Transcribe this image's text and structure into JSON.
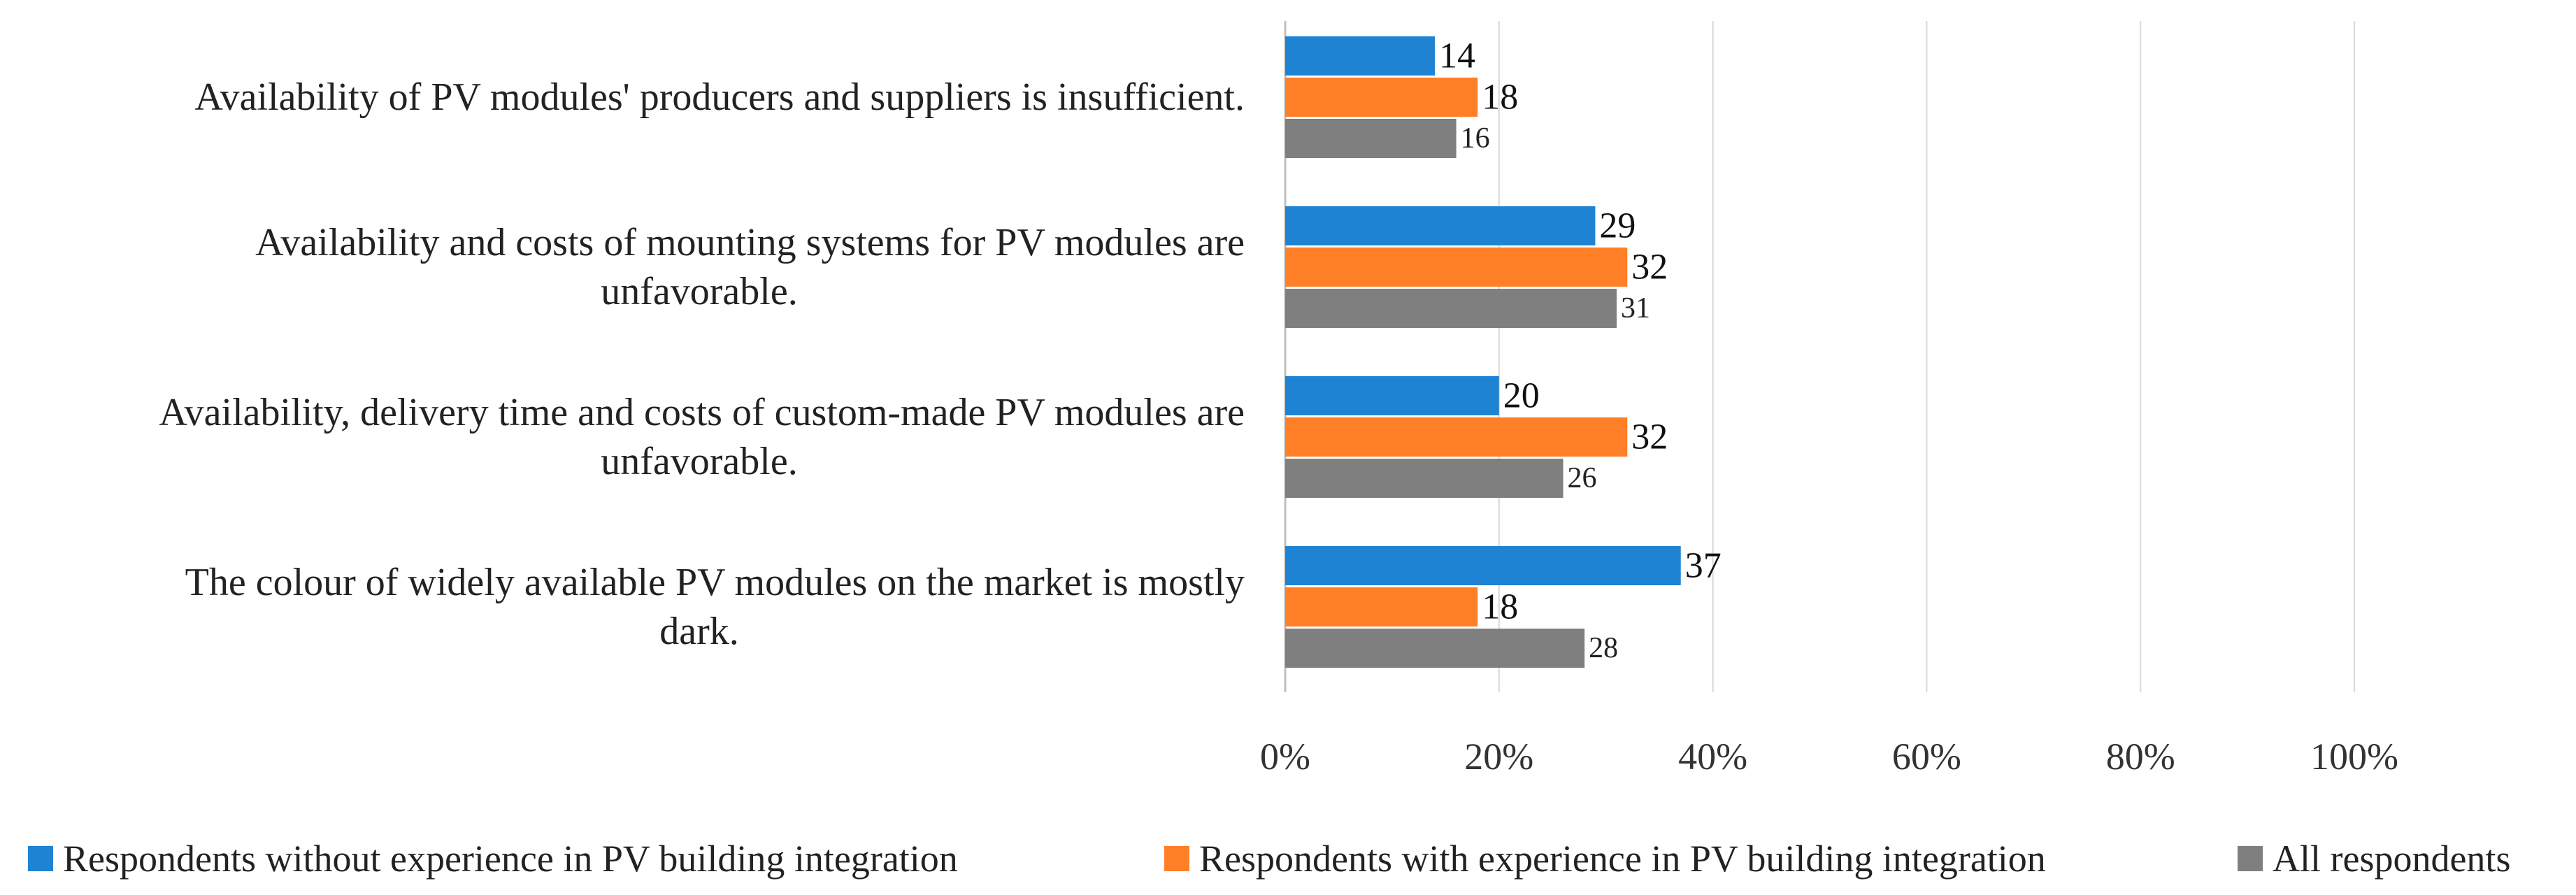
{
  "chart_data": {
    "type": "bar",
    "orientation": "horizontal",
    "title": "",
    "xlabel": "",
    "ylabel": "",
    "xlim": [
      0,
      100
    ],
    "xticks": [
      "0%",
      "20%",
      "40%",
      "60%",
      "80%",
      "100%"
    ],
    "categories": [
      [
        "Availability of PV modules' producers and suppliers is insufficient."
      ],
      [
        "Availability and costs of mounting systems for PV modules are",
        "unfavorable."
      ],
      [
        "Availability, delivery time and costs of custom-made PV modules are",
        "unfavorable."
      ],
      [
        "The colour of widely available PV modules on the market is mostly",
        "dark."
      ]
    ],
    "series": [
      {
        "name": "Respondents without experience in PV building integration",
        "color": "#1f83d3",
        "values": [
          14,
          29,
          20,
          37
        ]
      },
      {
        "name": "Respondents with experience in PV building integration",
        "color": "#ff7f27",
        "values": [
          18,
          32,
          32,
          18
        ]
      },
      {
        "name": "All respondents",
        "color": "#7f7f7f",
        "values": [
          16,
          31,
          26,
          28
        ]
      }
    ],
    "grid": true,
    "legend_position": "bottom"
  }
}
